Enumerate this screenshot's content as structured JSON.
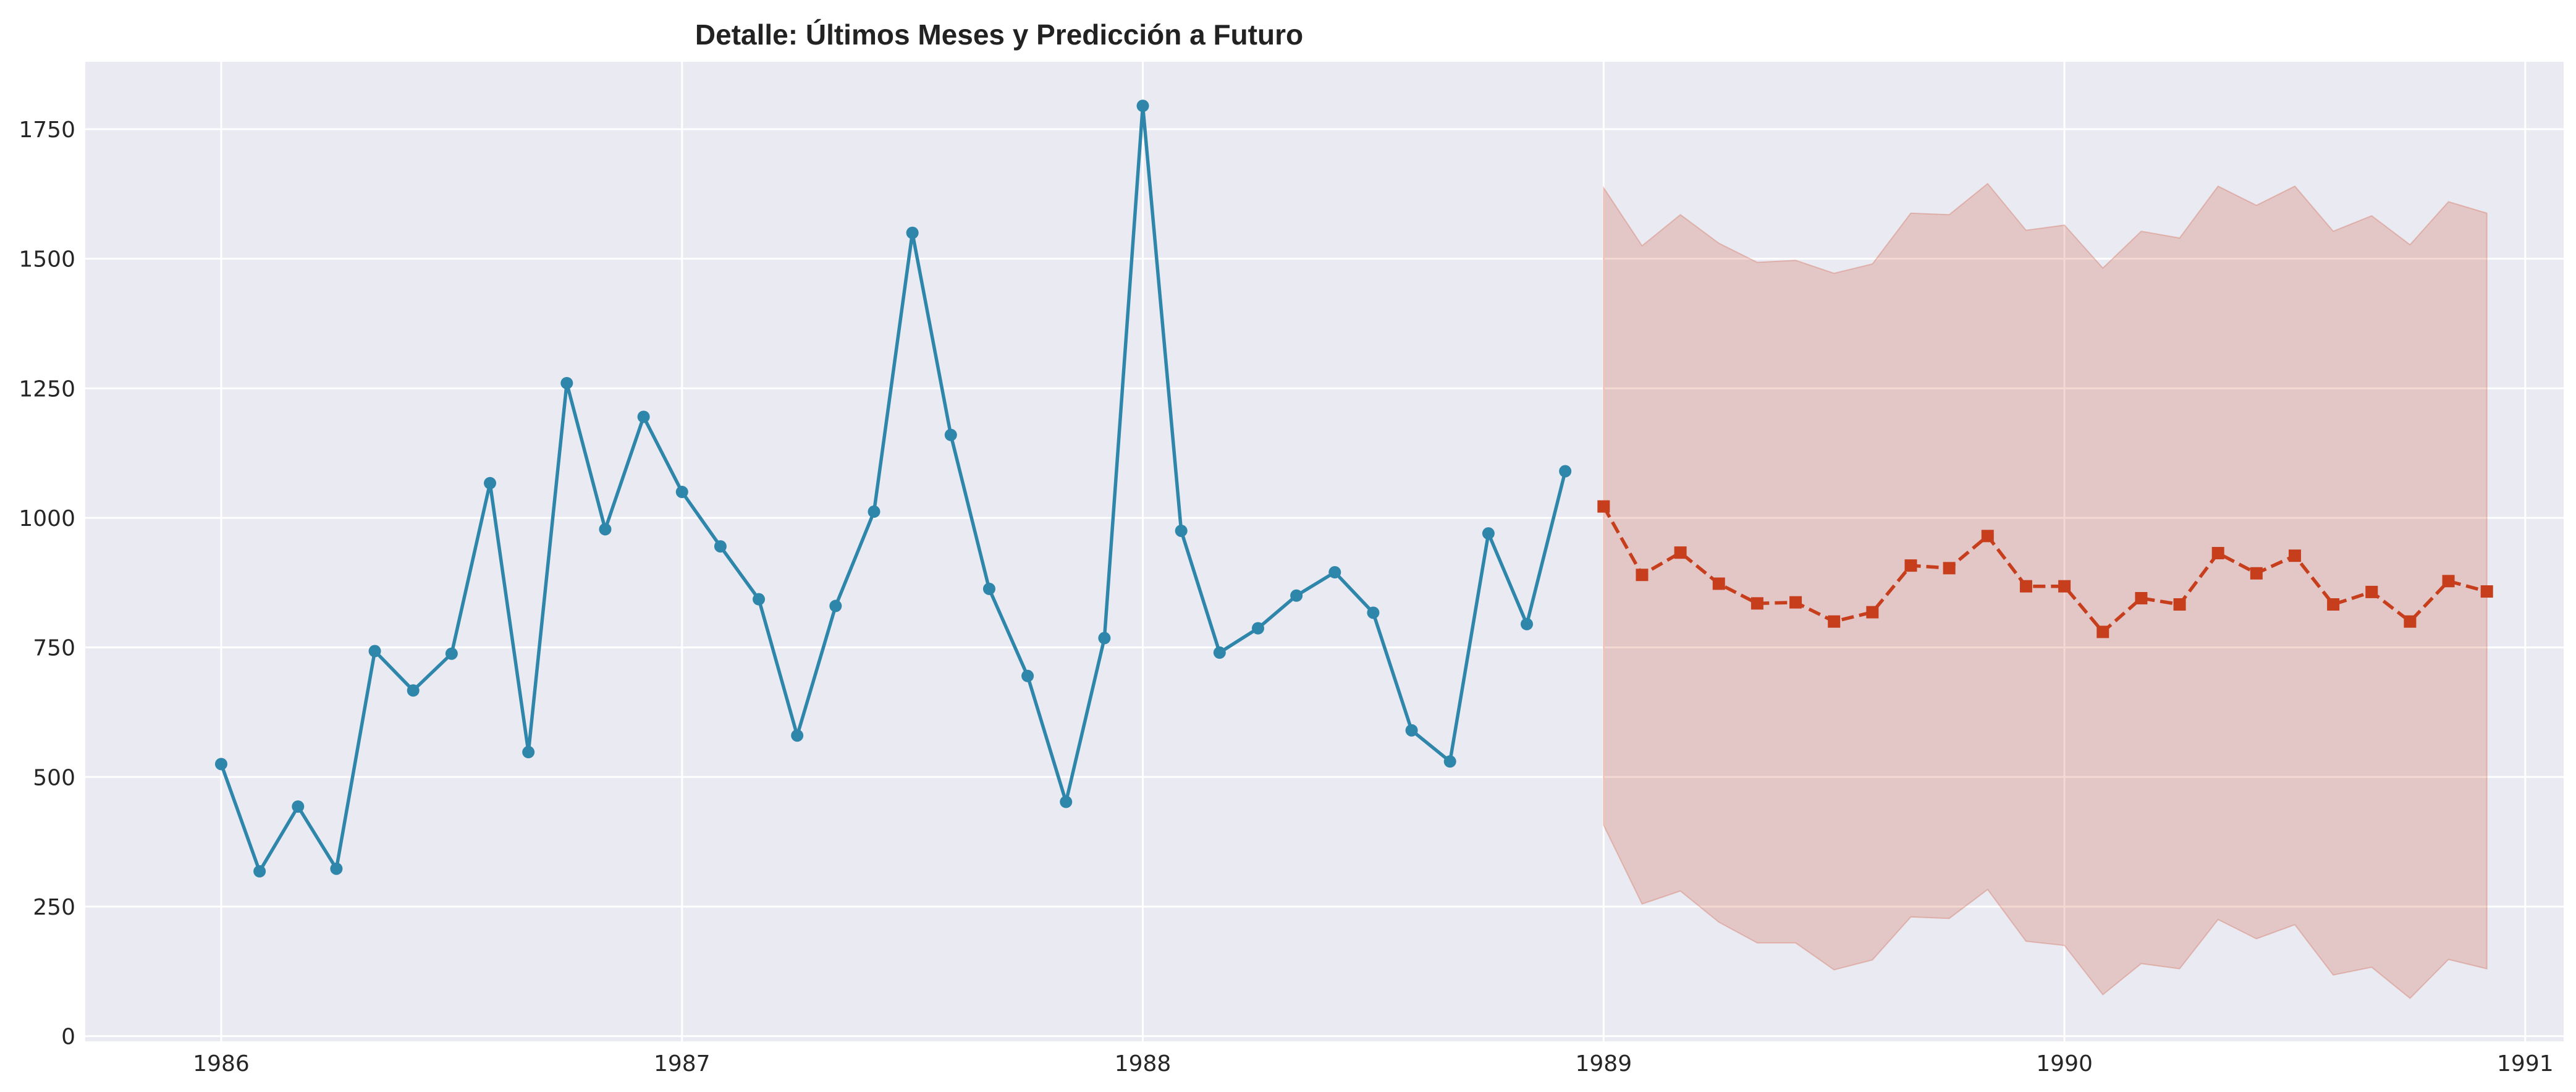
{
  "chart_data": {
    "type": "line",
    "title": "Detalle: Últimos Meses y Predicción a Futuro",
    "xlabel": "",
    "ylabel": "",
    "xlim": [
      "1985-09-15",
      "1991-02-01"
    ],
    "ylim": [
      -10,
      1880
    ],
    "x_ticks": [
      "1986",
      "1987",
      "1988",
      "1989",
      "1990",
      "1991"
    ],
    "y_ticks": [
      "0",
      "250",
      "500",
      "750",
      "1000",
      "1250",
      "1500",
      "1750"
    ],
    "grid": true,
    "legend": "none",
    "colors": {
      "plot_bg": "#eaeaf2",
      "grid": "#ffffff",
      "observed": "#2e86ab",
      "forecast": "#c73e1d",
      "band": "#c73e1d"
    },
    "series": [
      {
        "role": "observed",
        "style": "solid-circles",
        "x": [
          "1986-01",
          "1986-02",
          "1986-03",
          "1986-04",
          "1986-05",
          "1986-06",
          "1986-07",
          "1986-08",
          "1986-09",
          "1986-10",
          "1986-11",
          "1986-12",
          "1987-01",
          "1987-02",
          "1987-03",
          "1987-04",
          "1987-05",
          "1987-06",
          "1987-07",
          "1987-08",
          "1987-09",
          "1987-10",
          "1987-11",
          "1987-12",
          "1988-01",
          "1988-02",
          "1988-03",
          "1988-04",
          "1988-05",
          "1988-06",
          "1988-07",
          "1988-08",
          "1988-09",
          "1988-10",
          "1988-11",
          "1988-12"
        ],
        "values": [
          525,
          318,
          443,
          323,
          743,
          667,
          738,
          1067,
          548,
          1260,
          978,
          1195,
          1050,
          945,
          843,
          580,
          830,
          1012,
          1550,
          1160,
          863,
          695,
          452,
          768,
          1795,
          975,
          740,
          787,
          850,
          895,
          817,
          590,
          530,
          970,
          795,
          1090
        ]
      },
      {
        "role": "forecast",
        "style": "dashed-squares",
        "x": [
          "1989-01",
          "1989-02",
          "1989-03",
          "1989-04",
          "1989-05",
          "1989-06",
          "1989-07",
          "1989-08",
          "1989-09",
          "1989-10",
          "1989-11",
          "1989-12",
          "1990-01",
          "1990-02",
          "1990-03",
          "1990-04",
          "1990-05",
          "1990-06",
          "1990-07",
          "1990-08",
          "1990-09",
          "1990-10",
          "1990-11",
          "1990-12"
        ],
        "values": [
          1022,
          890,
          933,
          873,
          835,
          837,
          800,
          818,
          908,
          903,
          965,
          868,
          868,
          780,
          845,
          833,
          932,
          893,
          927,
          833,
          857,
          800,
          878,
          858
        ],
        "lower": [
          407,
          255,
          280,
          220,
          180,
          180,
          128,
          147,
          230,
          227,
          283,
          183,
          175,
          80,
          140,
          130,
          225,
          188,
          215,
          118,
          133,
          73,
          148,
          130
        ],
        "upper": [
          1637,
          1525,
          1585,
          1530,
          1493,
          1497,
          1472,
          1490,
          1588,
          1585,
          1645,
          1555,
          1565,
          1482,
          1553,
          1540,
          1640,
          1603,
          1640,
          1553,
          1583,
          1527,
          1610,
          1588
        ]
      }
    ]
  }
}
